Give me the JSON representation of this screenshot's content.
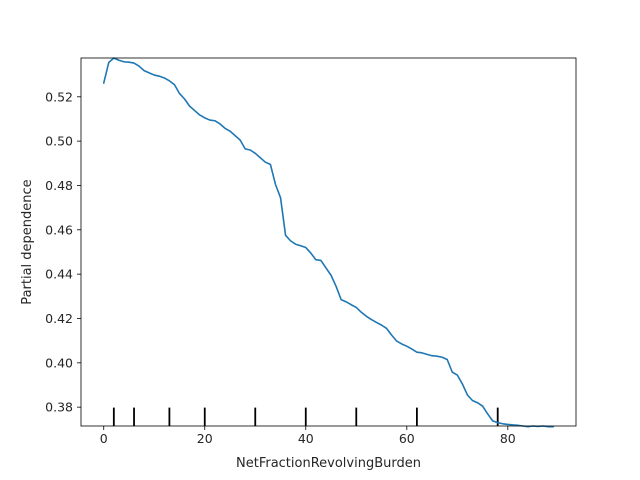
{
  "chart_data": {
    "type": "line",
    "title": "",
    "xlabel": "NetFractionRevolvingBurden",
    "ylabel": "Partial dependence",
    "xlim": [
      -4.5,
      93.5
    ],
    "ylim": [
      0.3715,
      0.5375
    ],
    "xticks": [
      0,
      20,
      40,
      60,
      80
    ],
    "xtick_labels": [
      "0",
      "20",
      "40",
      "60",
      "80"
    ],
    "yticks": [
      0.38,
      0.4,
      0.42,
      0.44,
      0.46,
      0.48,
      0.5,
      0.52
    ],
    "ytick_labels": [
      "0.38",
      "0.40",
      "0.42",
      "0.44",
      "0.46",
      "0.48",
      "0.50",
      "0.52"
    ],
    "grid": false,
    "line_color": "#1f77b4",
    "deciles": [
      2,
      6,
      13,
      20,
      30,
      40,
      50,
      62,
      78
    ],
    "series": [
      {
        "x": [
          0,
          1,
          2,
          3,
          4,
          5,
          6,
          7,
          8,
          9,
          10,
          11,
          12,
          13,
          14,
          15,
          16,
          17,
          18,
          19,
          20,
          21,
          22,
          23,
          24,
          25,
          26,
          27,
          28,
          29,
          30,
          31,
          32,
          33,
          34,
          35,
          36,
          37,
          38,
          39,
          40,
          41,
          42,
          43,
          44,
          45,
          46,
          47,
          48,
          49,
          50,
          51,
          52,
          53,
          54,
          55,
          56,
          57,
          58,
          59,
          60,
          61,
          62,
          63,
          64,
          65,
          66,
          67,
          68,
          69,
          70,
          71,
          72,
          73,
          74,
          75,
          76,
          77,
          78,
          79,
          80,
          81,
          82,
          83,
          84,
          85,
          86,
          87,
          88,
          89
        ],
        "y": [
          0.5262,
          0.5355,
          0.5375,
          0.5365,
          0.5358,
          0.5356,
          0.5352,
          0.5338,
          0.5318,
          0.5308,
          0.5298,
          0.5293,
          0.5285,
          0.5272,
          0.5255,
          0.5215,
          0.519,
          0.5158,
          0.5138,
          0.5118,
          0.5105,
          0.5095,
          0.5092,
          0.5078,
          0.5058,
          0.5045,
          0.5025,
          0.5005,
          0.4965,
          0.496,
          0.4945,
          0.4925,
          0.4905,
          0.4895,
          0.4805,
          0.4745,
          0.4575,
          0.455,
          0.4535,
          0.4528,
          0.452,
          0.4495,
          0.4465,
          0.4462,
          0.4428,
          0.4395,
          0.4345,
          0.4285,
          0.4275,
          0.4262,
          0.425,
          0.4228,
          0.421,
          0.4195,
          0.4182,
          0.417,
          0.4155,
          0.4125,
          0.4098,
          0.4085,
          0.4075,
          0.4062,
          0.4048,
          0.4045,
          0.4038,
          0.4032,
          0.403,
          0.4025,
          0.4015,
          0.3958,
          0.3945,
          0.3905,
          0.3855,
          0.383,
          0.382,
          0.3805,
          0.377,
          0.3738,
          0.373,
          0.3725,
          0.3722,
          0.372,
          0.3718,
          0.3715,
          0.3712,
          0.3715,
          0.3713,
          0.3715,
          0.3712,
          0.3712
        ]
      }
    ]
  }
}
